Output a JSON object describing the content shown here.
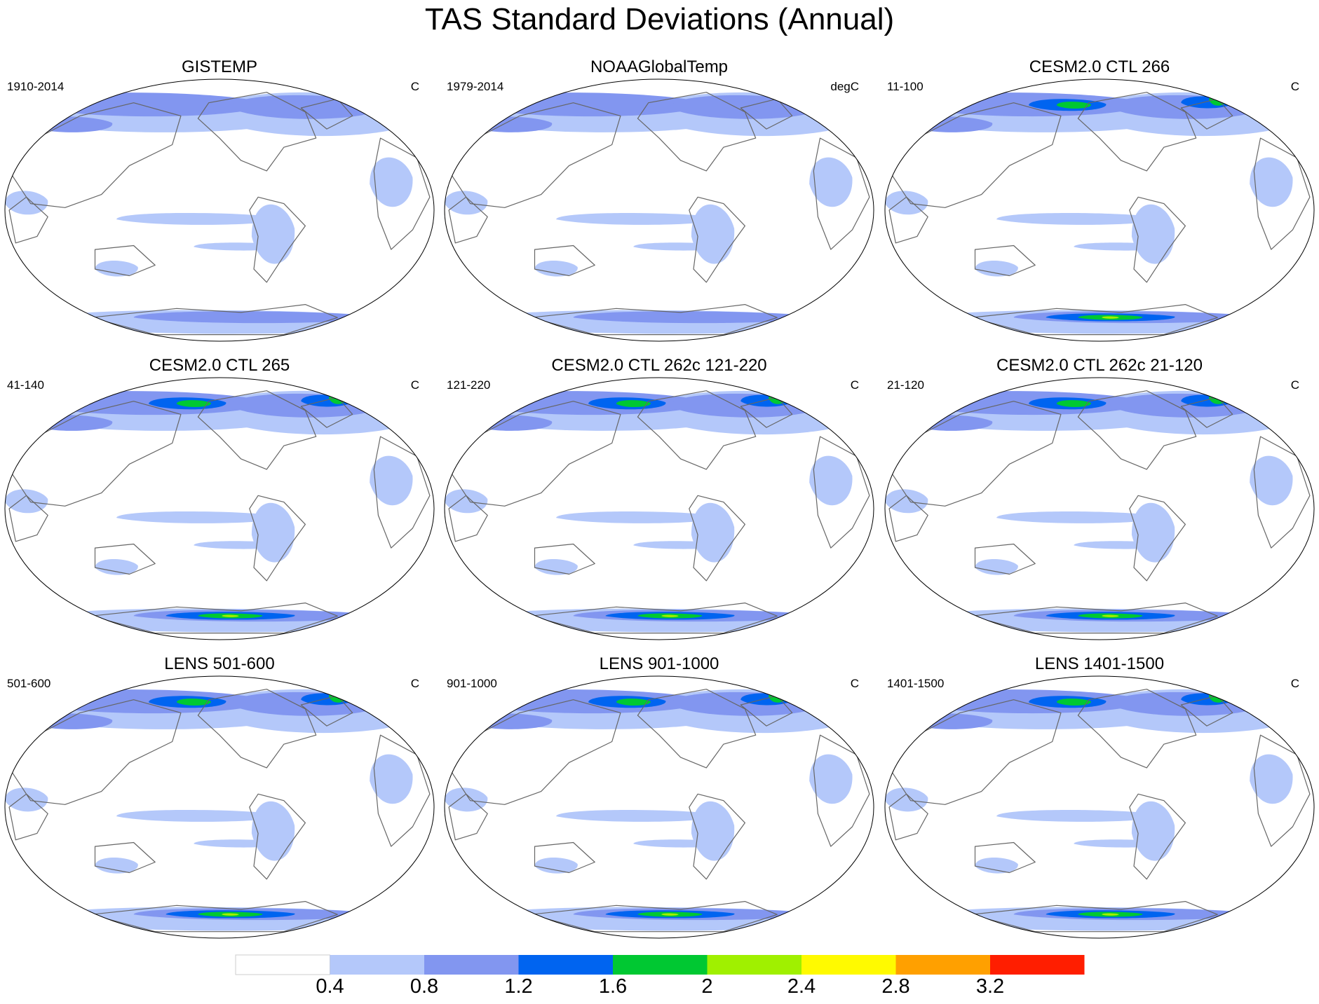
{
  "title": "TAS Standard Deviations (Annual)",
  "chart_data": {
    "type": "heatmap",
    "title": "TAS Standard Deviations (Annual)",
    "variable": "TAS",
    "panels": [
      {
        "title": "GISTEMP",
        "period": "1910-2014",
        "units": "C",
        "max_level": 1.2
      },
      {
        "title": "NOAAGlobalTemp",
        "period": "1979-2014",
        "units": "degC",
        "max_level": 1.2
      },
      {
        "title": "CESM2.0 CTL 266",
        "period": "11-100",
        "units": "C",
        "max_level": 2.4
      },
      {
        "title": "CESM2.0 CTL 265",
        "period": "41-140",
        "units": "C",
        "max_level": 2.8
      },
      {
        "title": "CESM2.0 CTL 262c 121-220",
        "period": "121-220",
        "units": "C",
        "max_level": 2.8
      },
      {
        "title": "CESM2.0 CTL 262c 21-120",
        "period": "21-120",
        "units": "C",
        "max_level": 3.2
      },
      {
        "title": "LENS 501-600",
        "period": "501-600",
        "units": "C",
        "max_level": 3.2
      },
      {
        "title": "LENS 901-1000",
        "period": "901-1000",
        "units": "C",
        "max_level": 3.2
      },
      {
        "title": "LENS 1401-1500",
        "period": "1401-1500",
        "units": "C",
        "max_level": 3.2
      }
    ],
    "colorbar": {
      "levels": [
        "0.4",
        "0.8",
        "1.2",
        "1.6",
        "2",
        "2.4",
        "2.8",
        "3.2"
      ],
      "colors": [
        "#ffffff",
        "#b4c8fa",
        "#8296f0",
        "#0064f0",
        "#00c832",
        "#a0f000",
        "#fffa00",
        "#ffa000",
        "#ff1e00"
      ]
    }
  }
}
